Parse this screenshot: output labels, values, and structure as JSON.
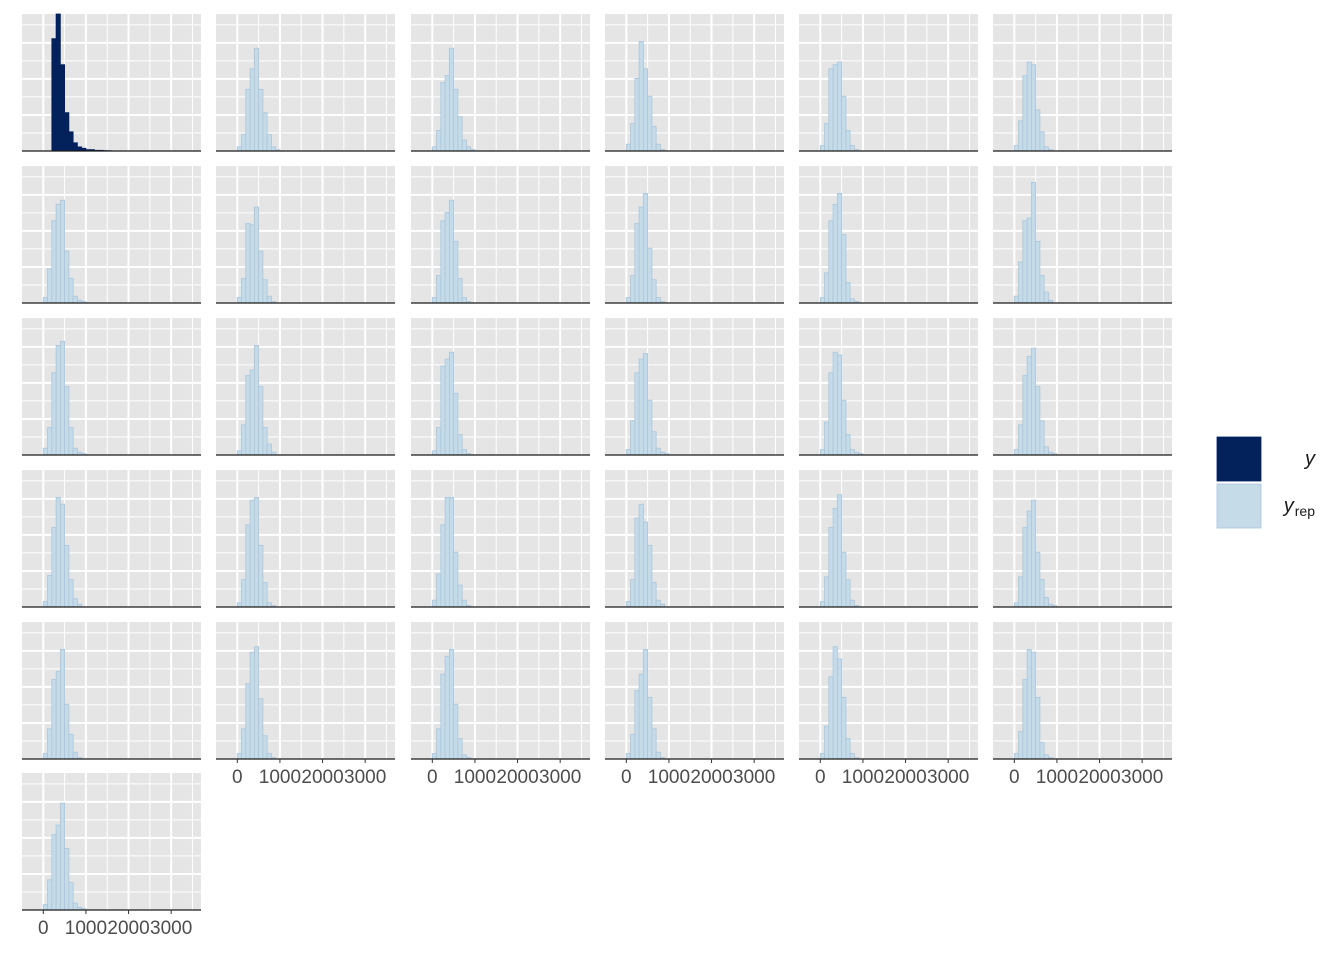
{
  "chart_data": {
    "type": "bar",
    "layout": {
      "rows": 6,
      "cols": 6,
      "panels": 31
    },
    "panel_background": "#e5e5e5",
    "grid": true,
    "colors": {
      "y": {
        "fill": "#03215b",
        "stroke": "#03215b"
      },
      "yrep": {
        "fill": "#c6dbe8",
        "stroke": "#a9c6dd"
      }
    },
    "x_axis": {
      "ticks": [
        0,
        1000,
        2000,
        3000
      ],
      "tick_labels": [
        "0",
        "1000",
        "2000",
        "3000"
      ],
      "xlim": [
        -500,
        3700
      ]
    },
    "bins": {
      "start": -100,
      "width": 100,
      "count": 17
    },
    "legend": {
      "position": "right",
      "entries": [
        {
          "key": "y",
          "label": "y",
          "sub": ""
        },
        {
          "key": "yrep",
          "label": "y",
          "sub": "rep"
        }
      ]
    },
    "series": [
      {
        "name": "y",
        "counts": [
          0,
          0,
          0,
          82,
          100,
          63,
          28,
          14,
          6,
          3,
          2,
          1,
          1,
          0.5,
          0.5,
          0.3,
          0.2
        ]
      },
      {
        "name": "yrep",
        "counts": [
          0,
          3,
          12,
          45,
          60,
          75,
          45,
          28,
          12,
          3,
          1,
          0,
          0,
          0,
          0,
          0,
          0
        ]
      },
      {
        "name": "yrep",
        "counts": [
          0,
          3,
          15,
          50,
          55,
          75,
          45,
          25,
          8,
          3,
          1,
          0,
          0,
          0,
          0,
          0,
          0
        ]
      },
      {
        "name": "yrep",
        "counts": [
          0,
          5,
          20,
          53,
          80,
          60,
          40,
          18,
          5,
          1,
          0,
          0,
          0,
          0,
          0,
          0,
          0
        ]
      },
      {
        "name": "yrep",
        "counts": [
          0,
          4,
          20,
          60,
          63,
          65,
          40,
          15,
          4,
          1,
          0,
          0,
          0,
          0,
          0,
          0,
          0
        ]
      },
      {
        "name": "yrep",
        "counts": [
          0,
          4,
          22,
          55,
          65,
          63,
          30,
          14,
          3,
          1,
          0,
          0,
          0,
          0,
          0,
          0,
          0
        ]
      },
      {
        "name": "yrep",
        "counts": [
          0,
          4,
          25,
          60,
          72,
          75,
          38,
          18,
          5,
          2,
          1,
          0,
          0,
          0,
          0,
          0,
          0
        ]
      },
      {
        "name": "yrep",
        "counts": [
          0,
          4,
          18,
          58,
          57,
          70,
          38,
          17,
          5,
          1,
          0,
          0,
          0,
          0,
          0,
          0,
          0
        ]
      },
      {
        "name": "yrep",
        "counts": [
          0,
          4,
          20,
          60,
          66,
          75,
          45,
          18,
          4,
          1,
          0,
          0,
          0,
          0,
          0,
          0,
          0
        ]
      },
      {
        "name": "yrep",
        "counts": [
          0,
          4,
          20,
          58,
          70,
          80,
          40,
          17,
          4,
          1,
          0,
          0,
          0,
          0,
          0,
          0,
          0
        ]
      },
      {
        "name": "yrep",
        "counts": [
          0,
          4,
          22,
          60,
          72,
          80,
          50,
          15,
          3,
          1,
          0,
          0,
          0,
          0,
          0,
          0,
          0
        ]
      },
      {
        "name": "yrep",
        "counts": [
          0,
          5,
          30,
          60,
          62,
          88,
          45,
          20,
          8,
          2,
          0,
          0,
          0,
          0,
          0,
          0,
          0
        ]
      },
      {
        "name": "yrep",
        "counts": [
          0,
          5,
          20,
          60,
          80,
          83,
          50,
          20,
          5,
          2,
          1,
          0,
          0,
          0,
          0,
          0,
          0
        ]
      },
      {
        "name": "yrep",
        "counts": [
          0,
          3,
          22,
          58,
          62,
          80,
          50,
          20,
          8,
          2,
          0,
          0,
          0,
          0,
          0,
          0,
          0
        ]
      },
      {
        "name": "yrep",
        "counts": [
          0,
          3,
          20,
          65,
          70,
          75,
          45,
          15,
          4,
          1,
          0,
          0,
          0,
          0,
          0,
          0,
          0
        ]
      },
      {
        "name": "yrep",
        "counts": [
          0,
          4,
          25,
          60,
          70,
          74,
          40,
          17,
          5,
          2,
          1,
          0,
          0,
          0,
          0,
          0,
          0
        ]
      },
      {
        "name": "yrep",
        "counts": [
          0,
          4,
          24,
          60,
          75,
          73,
          40,
          15,
          4,
          2,
          1,
          0,
          0,
          0,
          0,
          0,
          0
        ]
      },
      {
        "name": "yrep",
        "counts": [
          0,
          4,
          22,
          58,
          72,
          78,
          50,
          25,
          6,
          2,
          1,
          0,
          0,
          0,
          0,
          0,
          0
        ]
      },
      {
        "name": "yrep",
        "counts": [
          0,
          4,
          23,
          58,
          80,
          75,
          45,
          20,
          6,
          2,
          0,
          0,
          0,
          0,
          0,
          0,
          0
        ]
      },
      {
        "name": "yrep",
        "counts": [
          0,
          3,
          20,
          60,
          78,
          80,
          45,
          18,
          3,
          1,
          0,
          0,
          0,
          0,
          0,
          0,
          0
        ]
      },
      {
        "name": "yrep",
        "counts": [
          0,
          5,
          24,
          60,
          80,
          80,
          40,
          16,
          5,
          1,
          0,
          0,
          0,
          0,
          0,
          0,
          0
        ]
      },
      {
        "name": "yrep",
        "counts": [
          0,
          4,
          20,
          65,
          75,
          62,
          45,
          18,
          5,
          2,
          0,
          0,
          0,
          0,
          0,
          0,
          0
        ]
      },
      {
        "name": "yrep",
        "counts": [
          0,
          4,
          22,
          58,
          72,
          82,
          40,
          20,
          5,
          1,
          0,
          0,
          0,
          0,
          0,
          0,
          0
        ]
      },
      {
        "name": "yrep",
        "counts": [
          0,
          3,
          22,
          58,
          70,
          78,
          40,
          20,
          7,
          2,
          1,
          0,
          0,
          0,
          0,
          0,
          0
        ]
      },
      {
        "name": "yrep",
        "counts": [
          0,
          4,
          22,
          58,
          64,
          80,
          40,
          18,
          5,
          1,
          0,
          0,
          0,
          0,
          0,
          0,
          0
        ]
      },
      {
        "name": "yrep",
        "counts": [
          0,
          4,
          22,
          55,
          78,
          82,
          44,
          17,
          4,
          1,
          0,
          0,
          0,
          0,
          0,
          0,
          0
        ]
      },
      {
        "name": "yrep",
        "counts": [
          0,
          4,
          22,
          62,
          75,
          80,
          40,
          15,
          3,
          1,
          0,
          0,
          0,
          0,
          0,
          0,
          0
        ]
      },
      {
        "name": "yrep",
        "counts": [
          0,
          4,
          18,
          50,
          62,
          80,
          45,
          22,
          5,
          1,
          0,
          0,
          0,
          0,
          0,
          0,
          0
        ]
      },
      {
        "name": "yrep",
        "counts": [
          0,
          4,
          24,
          60,
          82,
          73,
          45,
          15,
          4,
          1,
          0,
          0,
          0,
          0,
          0,
          0,
          0
        ]
      },
      {
        "name": "yrep",
        "counts": [
          0,
          4,
          20,
          58,
          80,
          78,
          45,
          12,
          3,
          1,
          0,
          0,
          0,
          0,
          0,
          0,
          0
        ]
      },
      {
        "name": "yrep",
        "counts": [
          0,
          4,
          22,
          55,
          62,
          78,
          45,
          20,
          5,
          2,
          1,
          0,
          0,
          0,
          0,
          0,
          0
        ]
      }
    ]
  }
}
